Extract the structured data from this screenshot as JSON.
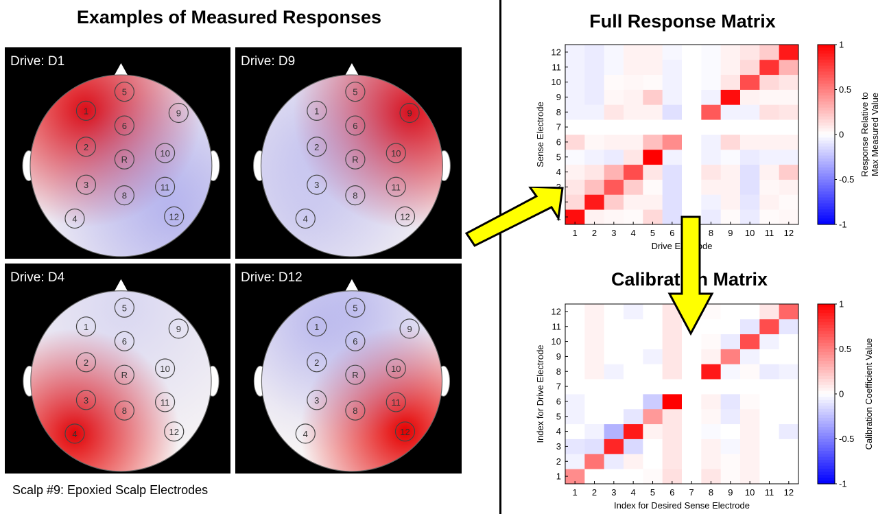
{
  "left_title": "Examples of Measured Responses",
  "caption": "Scalp #9: Epoxied Scalp Electrodes",
  "electrode_labels": [
    "1",
    "2",
    "3",
    "4",
    "5",
    "6",
    "8",
    "9",
    "10",
    "11",
    "12",
    "R"
  ],
  "scalp_panels": [
    {
      "drive_label": "Drive: D1",
      "drive": 1
    },
    {
      "drive_label": "Drive: D9",
      "drive": 9
    },
    {
      "drive_label": "Drive: D4",
      "drive": 4
    },
    {
      "drive_label": "Drive: D12",
      "drive": 12
    }
  ],
  "chart_data": [
    {
      "type": "heatmap",
      "title": "Full Response Matrix",
      "xlabel": "Drive Electrode",
      "ylabel": "Sense Electrode",
      "x": [
        1,
        2,
        3,
        4,
        5,
        6,
        7,
        8,
        9,
        10,
        11,
        12
      ],
      "y": [
        1,
        2,
        3,
        4,
        5,
        6,
        7,
        8,
        9,
        10,
        11,
        12
      ],
      "colorbar": {
        "label_line1": "Response Relative to",
        "label_line2": "Max Measured Value",
        "range": [
          -1,
          1
        ],
        "ticks": [
          "1",
          "0.5",
          "0",
          "-0.5",
          "-1"
        ]
      },
      "values": [
        [
          0.95,
          0.05,
          0.03,
          0.02,
          0.15,
          -0.12,
          0,
          -0.08,
          0.02,
          -0.08,
          0.02,
          0.03
        ],
        [
          0.15,
          0.9,
          0.2,
          0.05,
          0.05,
          -0.12,
          0,
          -0.05,
          0.05,
          -0.1,
          0.05,
          0.02
        ],
        [
          0.1,
          0.25,
          0.65,
          0.2,
          0.02,
          -0.12,
          0,
          0.05,
          0.05,
          -0.12,
          0.03,
          0.05
        ],
        [
          0.05,
          0.1,
          0.3,
          0.7,
          0.1,
          -0.12,
          0,
          0.1,
          0.05,
          -0.12,
          0.05,
          0.2
        ],
        [
          -0.02,
          -0.05,
          -0.08,
          0.1,
          1.0,
          -0.05,
          0,
          -0.05,
          -0.02,
          -0.08,
          -0.05,
          -0.05
        ],
        [
          0.15,
          0.03,
          0.05,
          0.05,
          0.25,
          0.45,
          0,
          -0.05,
          0.15,
          0.05,
          0.05,
          0.05
        ],
        [
          0,
          0,
          0,
          0,
          0,
          0,
          0,
          0,
          0,
          0,
          0,
          0
        ],
        [
          -0.05,
          -0.05,
          0.1,
          0.05,
          0.05,
          -0.12,
          0,
          0.65,
          -0.05,
          -0.05,
          0.12,
          0.1
        ],
        [
          -0.05,
          -0.08,
          0.03,
          0.05,
          0.2,
          -0.05,
          0,
          -0.05,
          0.95,
          0.05,
          0.03,
          0.03
        ],
        [
          -0.05,
          -0.08,
          0.02,
          0.03,
          0.02,
          -0.05,
          0,
          -0.02,
          0.1,
          0.7,
          0.15,
          0.1
        ],
        [
          -0.05,
          -0.08,
          -0.03,
          0.05,
          0.05,
          -0.05,
          0,
          -0.02,
          0.05,
          0.15,
          0.8,
          0.3
        ],
        [
          -0.05,
          -0.08,
          -0.03,
          0.05,
          0.05,
          -0.03,
          0,
          -0.02,
          0.05,
          0.1,
          0.2,
          0.9
        ]
      ]
    },
    {
      "type": "heatmap",
      "title": "Calibration Matrix",
      "xlabel": "Index for Desired Sense Electrode",
      "ylabel": "Index for Drive Electrode",
      "x": [
        1,
        2,
        3,
        4,
        5,
        6,
        7,
        8,
        9,
        10,
        11,
        12
      ],
      "y": [
        1,
        2,
        3,
        4,
        5,
        6,
        7,
        8,
        9,
        10,
        11,
        12
      ],
      "colorbar": {
        "label_line1": "Calibration Coefficient Value",
        "label_line2": "",
        "range": [
          -1,
          1
        ],
        "ticks": [
          "1",
          "0.5",
          "0",
          "-0.5",
          "-1"
        ]
      },
      "values": [
        [
          0.45,
          0,
          0,
          0,
          0.02,
          0.12,
          0,
          0.1,
          0.02,
          0.05,
          0,
          0
        ],
        [
          -0.05,
          0.55,
          -0.08,
          0.05,
          0,
          0.1,
          0,
          0.05,
          0.02,
          0.05,
          0,
          0
        ],
        [
          -0.1,
          -0.12,
          0.85,
          -0.15,
          0,
          0.1,
          0,
          0.05,
          -0.03,
          0.05,
          0,
          0
        ],
        [
          0,
          -0.05,
          -0.3,
          0.9,
          0.05,
          0.1,
          0,
          -0.02,
          0,
          0.05,
          0,
          -0.08
        ],
        [
          -0.05,
          0,
          0,
          -0.1,
          0.4,
          0.1,
          0,
          0.03,
          -0.08,
          0.05,
          0,
          0
        ],
        [
          -0.05,
          0,
          0,
          0,
          -0.2,
          1.0,
          0,
          0.05,
          -0.1,
          0.02,
          0,
          0
        ],
        [
          0,
          0,
          0,
          0,
          0,
          0,
          0,
          0,
          0,
          0,
          0,
          0
        ],
        [
          0,
          0.05,
          -0.05,
          0,
          0,
          0.1,
          0,
          0.9,
          -0.03,
          0.02,
          -0.08,
          -0.05
        ],
        [
          0,
          0.05,
          0,
          0,
          -0.05,
          0.1,
          0,
          0.05,
          0.5,
          -0.05,
          0,
          0
        ],
        [
          0,
          0.05,
          0,
          0,
          0,
          0.1,
          0,
          0.02,
          -0.08,
          0.7,
          -0.05,
          0
        ],
        [
          0,
          0.05,
          0,
          0,
          0,
          0.1,
          0,
          0,
          0,
          -0.1,
          0.7,
          -0.1
        ],
        [
          0,
          0.05,
          0,
          -0.05,
          0,
          0.1,
          0,
          0.02,
          0,
          0,
          0.1,
          0.6
        ]
      ]
    }
  ]
}
